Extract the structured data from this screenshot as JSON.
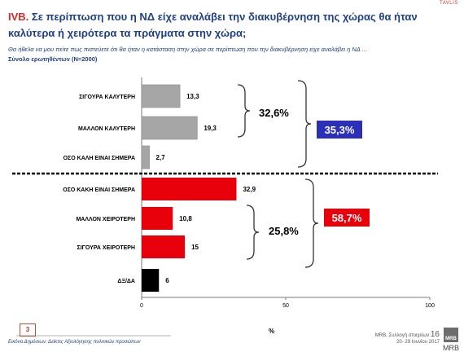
{
  "header": {
    "brand": "TAVLIS",
    "title_num": "IVB.",
    "title_text": "Σε περίπτωση που η ΝΔ είχε αναλάβει την διακυβέρνηση της χώρας θα ήταν καλύτερα ή χειρότερα τα πράγματα στην χώρα;",
    "subtitle": "Θα ήθελα να μου πείτε πως πιστεύετε ότι θα ήταν η κατάσταση στην χώρα σε περίπτωση που την διακυβέρνηση είχε αναλάβει η ΝΔ ...",
    "base": "Σύνολο ερωτηθέντων (Ν=2000)"
  },
  "chart_data": {
    "type": "bar",
    "orientation": "horizontal",
    "categories": [
      "ΣΙΓΟΥΡΑ ΚΑΛΥΤΕΡΗ",
      "ΜΑΛΛΟΝ ΚΑΛΥΤΕΡΗ",
      "ΟΣΟ ΚΑΛΗ ΕΙΝΑΙ ΣΗΜΕΡΑ",
      "ΟΣΟ ΚΑΚΗ ΕΙΝΑΙ ΣΗΜΕΡΑ",
      "ΜΑΛΛΟΝ ΧΕΙΡΟΤΕΡΗ",
      "ΣΙΓΟΥΡΑ ΧΕΙΡΟΤΕΡΗ",
      "ΔΞ/ΔΑ"
    ],
    "values": [
      13.3,
      19.3,
      2.7,
      32.9,
      10.8,
      15,
      6
    ],
    "value_labels": [
      "13,3",
      "19,3",
      "2,7",
      "32,9",
      "10,8",
      "15",
      "6"
    ],
    "bar_colors": [
      "#a6a6a6",
      "#a6a6a6",
      "#a6a6a6",
      "#e8000b",
      "#e8000b",
      "#e8000b",
      "#000000"
    ],
    "xlim": [
      0,
      100
    ],
    "xticks": [
      "0",
      "50",
      "100"
    ],
    "xlabel": "%",
    "group_labels": [
      {
        "text": "32,6%",
        "bar_span": [
          0,
          1
        ]
      },
      {
        "text": "25,8%",
        "bar_span": [
          4,
          5
        ]
      }
    ],
    "total_labels": [
      {
        "text": "35,3%",
        "color": "#2c2fb8",
        "bar_span": [
          0,
          2
        ]
      },
      {
        "text": "58,7%",
        "color": "#e8000b",
        "bar_span": [
          3,
          5
        ]
      }
    ]
  },
  "footer": {
    "page_box": "3",
    "footnote": "Εικόνα Δημόσιων: Δείκτες Αξιολόγησης πολιτικών προσώπων",
    "source_line1": "MRB, Συλλογή στοιχείων:",
    "page_num": "16",
    "source_line2": "20- 29 Ιουνίου 2017",
    "logo": "MRB",
    "watermark": "MRB"
  }
}
